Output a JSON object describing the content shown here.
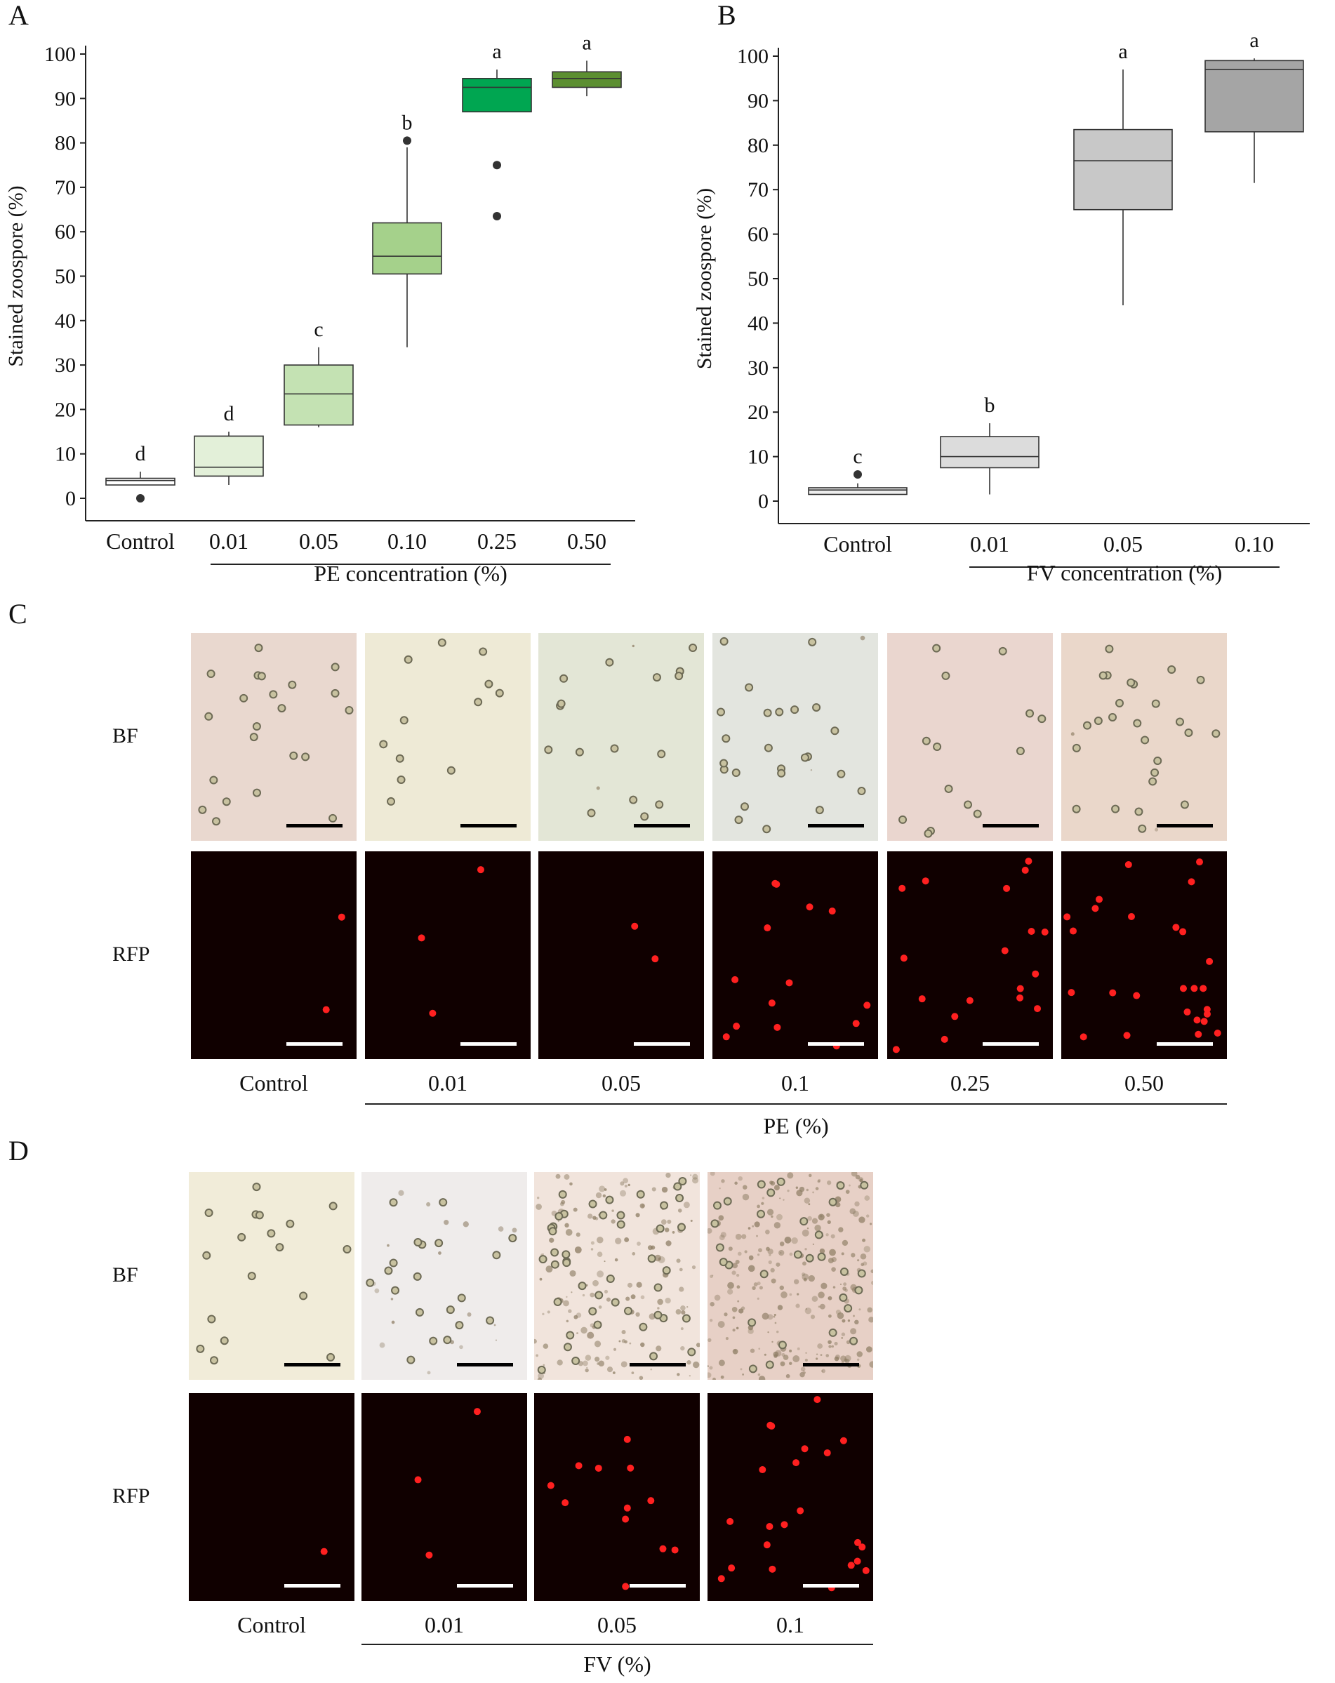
{
  "panels": {
    "a": "A",
    "b": "B",
    "c": "C",
    "d": "D"
  },
  "chart_data": [
    {
      "type": "box",
      "panel": "A",
      "ylabel": "Stained zoospore (%)",
      "xlabel": "PE concentration (%)",
      "ylim": [
        0,
        100
      ],
      "yticks": [
        0,
        10,
        20,
        30,
        40,
        50,
        60,
        70,
        80,
        90,
        100
      ],
      "categories": [
        "Control",
        "0.01",
        "0.05",
        "0.10",
        "0.25",
        "0.50"
      ],
      "boxes": [
        {
          "min": 3,
          "q1": 3,
          "median": 4,
          "q3": 4.5,
          "max": 6,
          "outliers": [
            0
          ],
          "letter": "d",
          "color": "#ffffff"
        },
        {
          "min": 3,
          "q1": 5,
          "median": 7,
          "q3": 14,
          "max": 15,
          "outliers": [],
          "letter": "d",
          "color": "#e3f0d9"
        },
        {
          "min": 16,
          "q1": 16.5,
          "median": 23.5,
          "q3": 30,
          "max": 34,
          "outliers": [],
          "letter": "c",
          "color": "#c4e2b3"
        },
        {
          "min": 34,
          "q1": 50.5,
          "median": 54.5,
          "q3": 62,
          "max": 79,
          "outliers": [
            80.5
          ],
          "letter": "b",
          "color": "#a5d18b"
        },
        {
          "min": 87,
          "q1": 87,
          "median": 92.5,
          "q3": 94.5,
          "max": 96.5,
          "outliers": [
            75,
            63.5
          ],
          "letter": "a",
          "color": "#00a651"
        },
        {
          "min": 90.5,
          "q1": 92.5,
          "median": 94.5,
          "q3": 96,
          "max": 98.5,
          "outliers": [],
          "letter": "a",
          "color": "#5c8f31"
        }
      ]
    },
    {
      "type": "box",
      "panel": "B",
      "ylabel": "Stained zoospore (%)",
      "xlabel": "FV concentration (%)",
      "ylim": [
        0,
        100
      ],
      "yticks": [
        0,
        10,
        20,
        30,
        40,
        50,
        60,
        70,
        80,
        90,
        100
      ],
      "categories": [
        "Control",
        "0.01",
        "0.05",
        "0.10"
      ],
      "boxes": [
        {
          "min": 1.5,
          "q1": 1.5,
          "median": 2.5,
          "q3": 3,
          "max": 4,
          "outliers": [
            6
          ],
          "letter": "c",
          "color": "#ededed"
        },
        {
          "min": 1.5,
          "q1": 7.5,
          "median": 10,
          "q3": 14.5,
          "max": 17.5,
          "outliers": [],
          "letter": "b",
          "color": "#dcdcdc"
        },
        {
          "min": 44,
          "q1": 65.5,
          "median": 76.5,
          "q3": 83.5,
          "max": 97,
          "outliers": [],
          "letter": "a",
          "color": "#c8c8c8"
        },
        {
          "min": 71.5,
          "q1": 83,
          "median": 97,
          "q3": 99,
          "max": 99.5,
          "outliers": [],
          "letter": "a",
          "color": "#a5a5a5"
        }
      ]
    }
  ],
  "panel_c": {
    "row_labels": [
      "BF",
      "RFP"
    ],
    "columns": [
      "Control",
      "0.01",
      "0.05",
      "0.1",
      "0.25",
      "0.50"
    ],
    "axis_title": "PE (%)"
  },
  "panel_d": {
    "row_labels": [
      "BF",
      "RFP"
    ],
    "columns": [
      "Control",
      "0.01",
      "0.05",
      "0.1"
    ],
    "axis_title": "FV (%)"
  },
  "colors": {
    "rfp_background": "#100000",
    "rfp_spot": "#ff2020",
    "scale_bar_bf": "#000000",
    "scale_bar_rfp": "#ffffff"
  }
}
